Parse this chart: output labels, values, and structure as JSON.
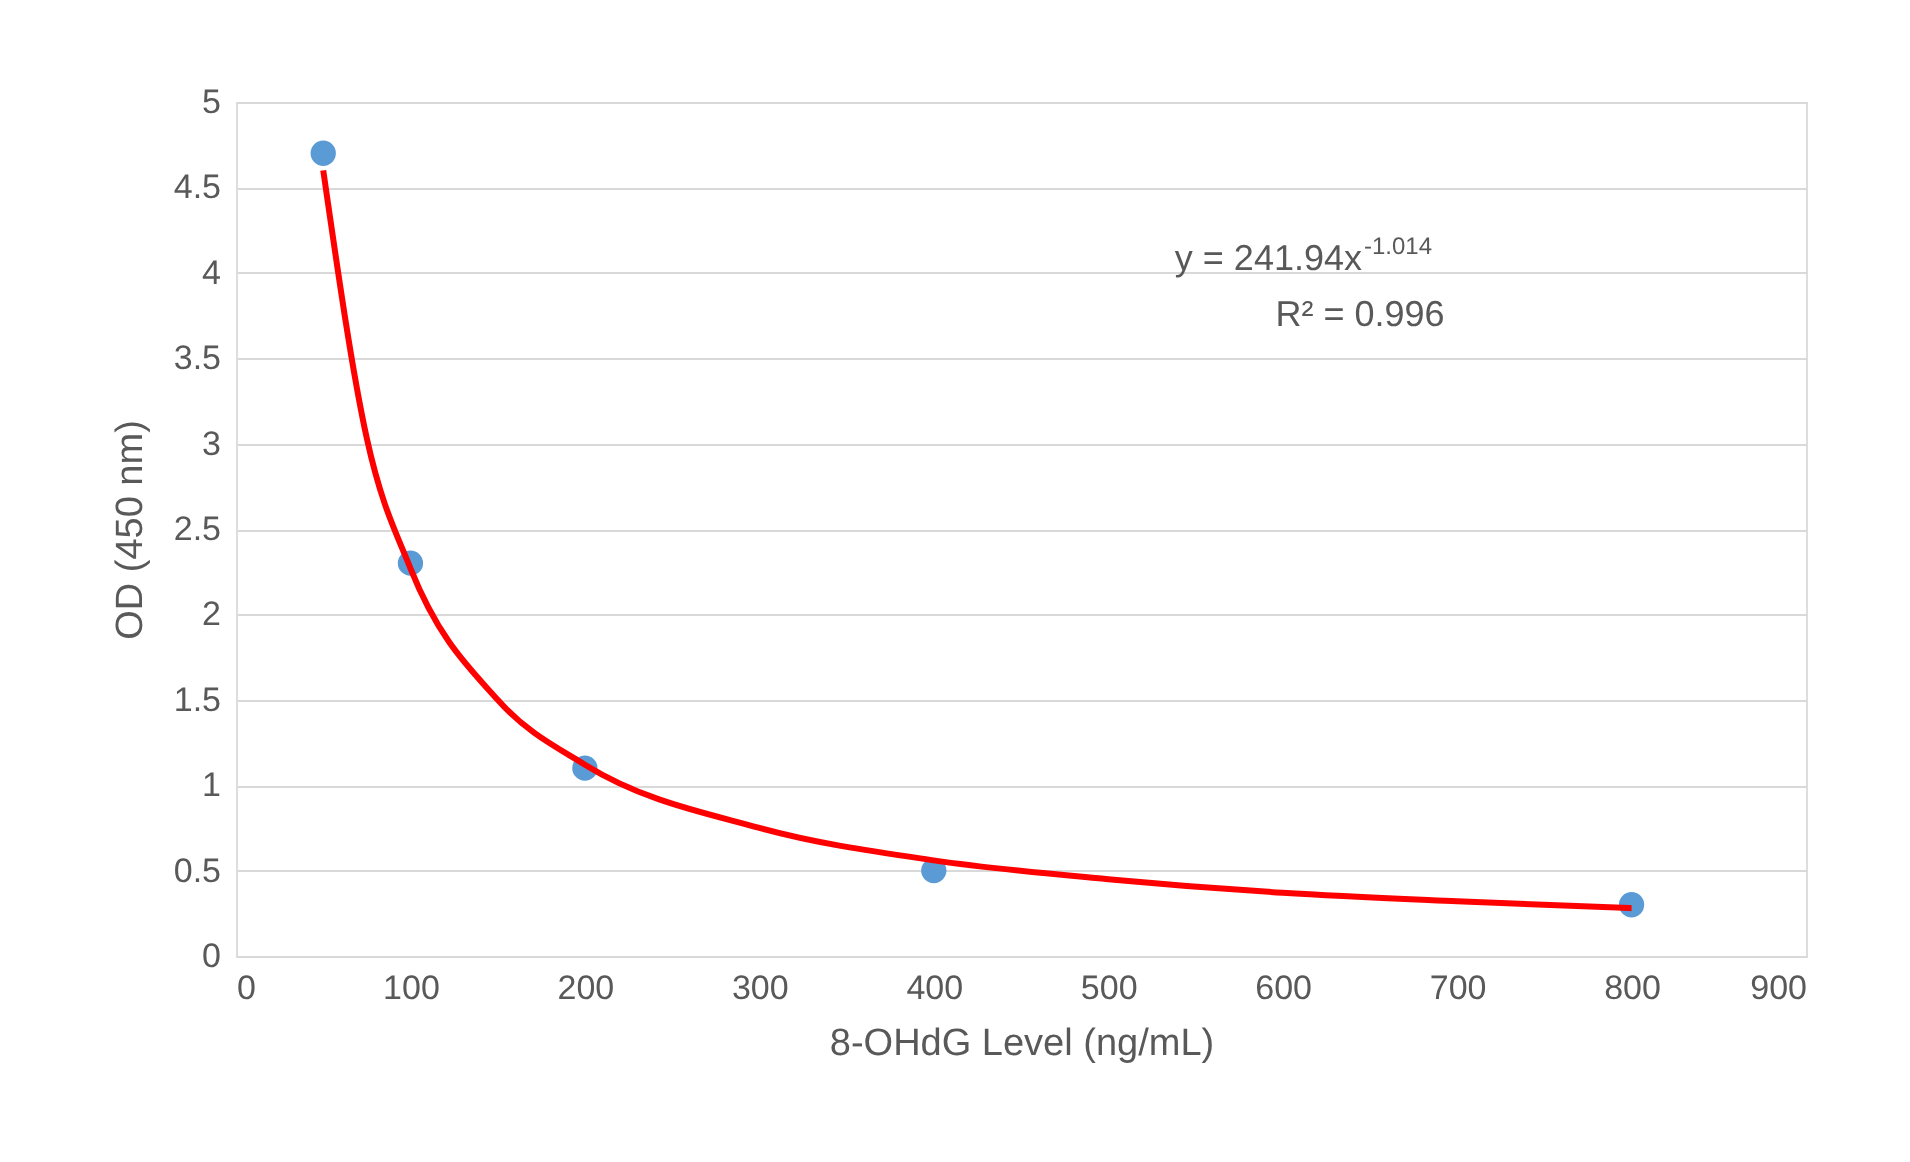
{
  "chart_data": {
    "type": "scatter",
    "xlabel": "8-OHdG Level (ng/mL)",
    "ylabel": "OD (450 nm)",
    "x": [
      50,
      100,
      200,
      400,
      800
    ],
    "series": [
      {
        "type": "scatter",
        "marker": "circle",
        "color": "#5b9bd5",
        "values": [
          4.7,
          2.3,
          1.1,
          0.5,
          0.3
        ]
      },
      {
        "type": "line",
        "marker": "none",
        "color": "#ff0000",
        "x": [
          50,
          75,
          100,
          150,
          200,
          300,
          400,
          500,
          600,
          700,
          800
        ],
        "values": [
          4.6,
          3.03,
          2.27,
          1.5,
          1.12,
          0.75,
          0.56,
          0.45,
          0.37,
          0.32,
          0.28
        ]
      }
    ],
    "annotations": [
      "y = 241.94x$^{-1.014}$",
      "R² = 0.996"
    ],
    "xlim": [
      0,
      900
    ],
    "xticks": [
      0,
      100,
      200,
      300,
      400,
      500,
      600,
      700,
      800,
      900
    ],
    "ylim": [
      0,
      5
    ],
    "yticks": [
      0,
      0.5,
      1,
      1.5,
      2,
      2.5,
      3,
      3.5,
      4,
      4.5,
      5
    ],
    "grid": "y"
  }
}
